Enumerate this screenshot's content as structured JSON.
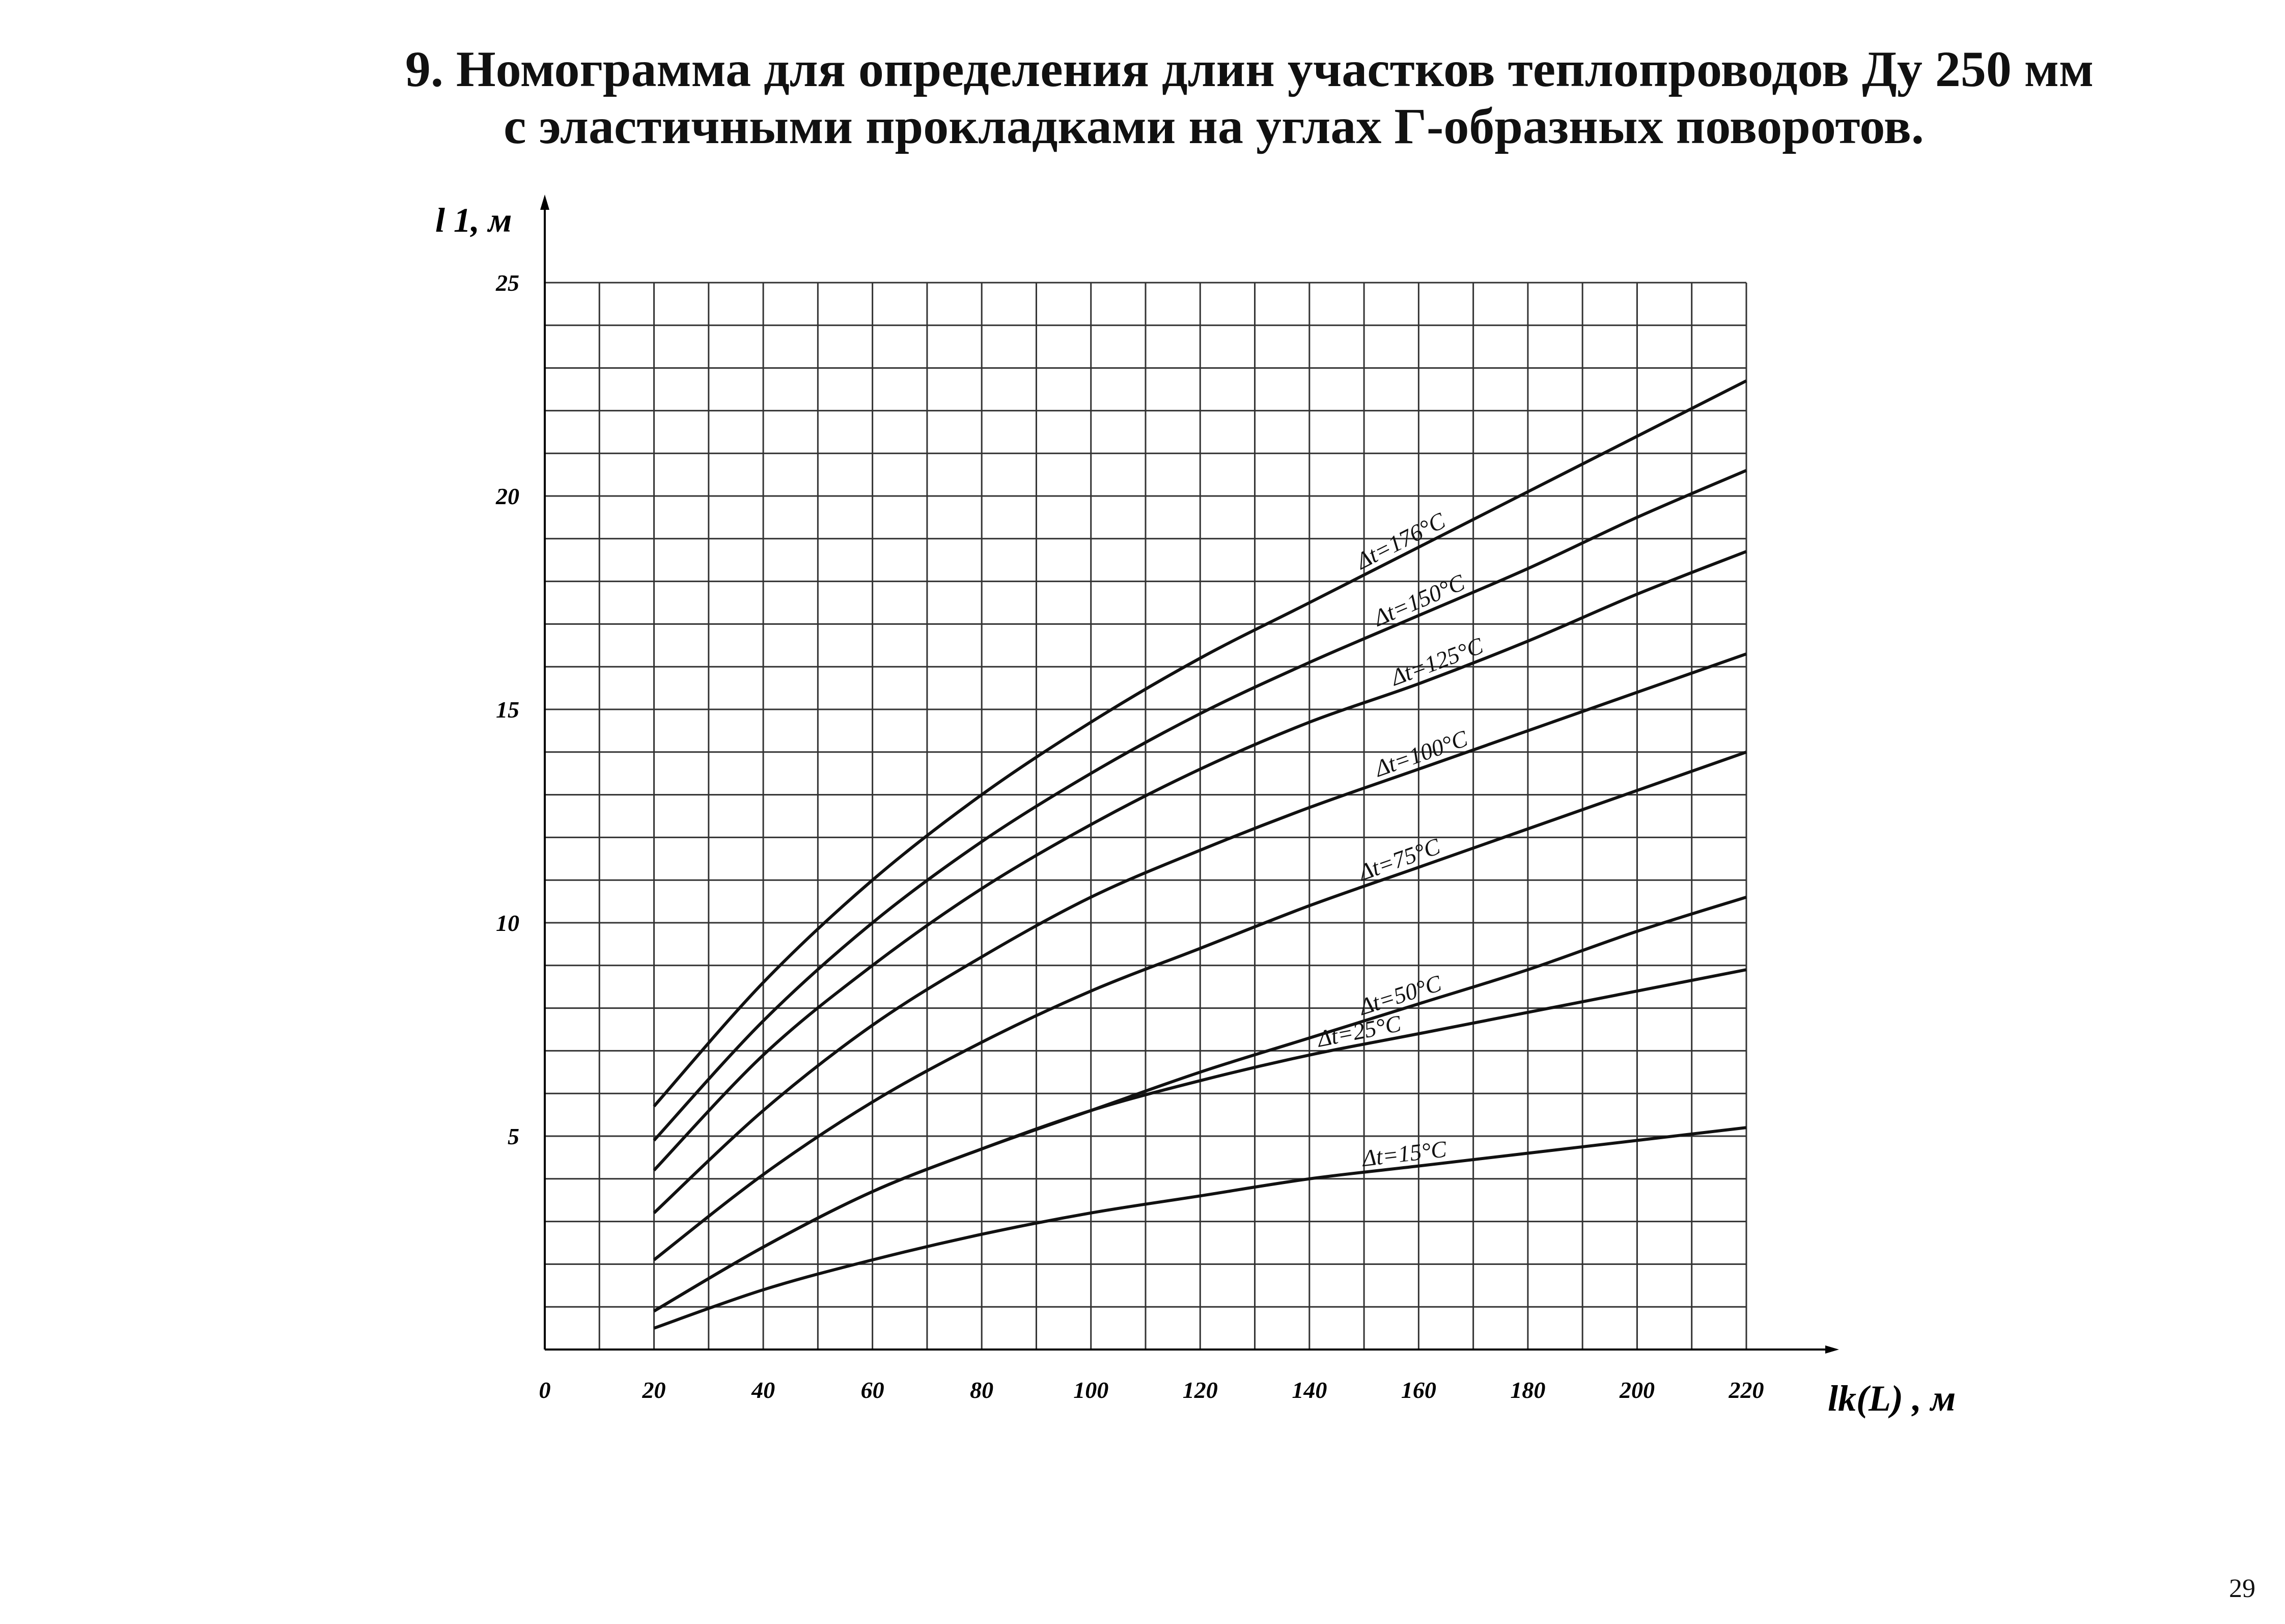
{
  "title_line1": "9. Номограмма для определения длин участков теплопроводов Ду 250 мм",
  "title_line2": "с эластичными прокладками на углах Г-образных поворотов.",
  "page_number": "29",
  "chart_data": {
    "type": "line",
    "title": "9. Номограмма для определения длин участков теплопроводов Ду 250 мм с эластичными прокладками на углах Г-образных поворотов.",
    "xlabel": "lk(L) , м",
    "ylabel": "l 1, м",
    "xlim": [
      0,
      220
    ],
    "ylim": [
      0,
      25
    ],
    "x_tick_labels": [
      "0",
      "20",
      "40",
      "60",
      "80",
      "100",
      "120",
      "140",
      "160",
      "180",
      "200",
      "220"
    ],
    "x_tick_values": [
      0,
      20,
      40,
      60,
      80,
      100,
      120,
      140,
      160,
      180,
      200,
      220
    ],
    "y_tick_labels": [
      "5",
      "10",
      "15",
      "20",
      "25"
    ],
    "y_tick_values": [
      5,
      10,
      15,
      20,
      25
    ],
    "grid": true,
    "x": [
      20,
      40,
      60,
      80,
      100,
      120,
      140,
      160,
      180,
      200,
      220
    ],
    "series": [
      {
        "name": "Δt=176°C",
        "label_x": 150,
        "values": [
          5.7,
          8.6,
          11.0,
          13.0,
          14.7,
          16.2,
          17.5,
          18.8,
          20.1,
          21.4,
          22.7
        ]
      },
      {
        "name": "Δt=150°C",
        "label_x": 153,
        "values": [
          4.9,
          7.7,
          10.0,
          11.9,
          13.5,
          14.9,
          16.1,
          17.2,
          18.3,
          19.5,
          20.6
        ]
      },
      {
        "name": "Δt=125°C",
        "label_x": 156,
        "values": [
          4.2,
          6.9,
          9.0,
          10.8,
          12.3,
          13.6,
          14.7,
          15.6,
          16.6,
          17.7,
          18.7
        ]
      },
      {
        "name": "Δt=100°C",
        "label_x": 153,
        "values": [
          3.2,
          5.6,
          7.6,
          9.2,
          10.6,
          11.7,
          12.7,
          13.6,
          14.5,
          15.4,
          16.3
        ]
      },
      {
        "name": "Δt=75°C",
        "label_x": 150,
        "values": [
          2.1,
          4.1,
          5.8,
          7.2,
          8.4,
          9.4,
          10.4,
          11.3,
          12.2,
          13.1,
          14.0
        ]
      },
      {
        "name": "Δt=50°C",
        "label_x": 150,
        "values": [
          0.9,
          2.4,
          3.7,
          4.7,
          5.6,
          6.5,
          7.3,
          8.1,
          8.9,
          9.8,
          10.6
        ]
      },
      {
        "name": "Δt=25°C",
        "label_x": 142,
        "values": [
          0.9,
          2.4,
          3.7,
          4.7,
          5.6,
          6.3,
          6.9,
          7.4,
          7.9,
          8.4,
          8.9
        ]
      },
      {
        "name": "Δt=15°C",
        "label_x": 150,
        "values": [
          0.5,
          1.4,
          2.1,
          2.7,
          3.2,
          3.6,
          4.0,
          4.3,
          4.6,
          4.9,
          5.2
        ]
      }
    ]
  }
}
